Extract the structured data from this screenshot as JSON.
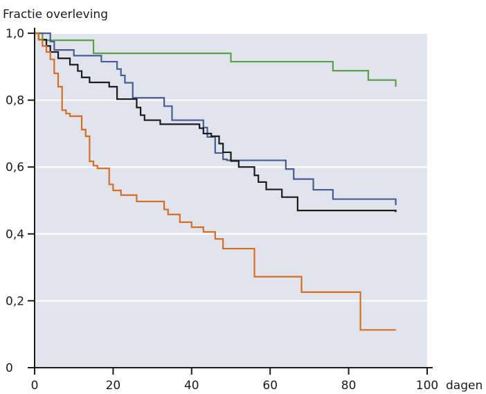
{
  "chart_data": {
    "type": "line",
    "title": "",
    "ylabel": "Fractie overleving",
    "xlabel": "",
    "x_unit_label": "dagen",
    "xlim": [
      0,
      100
    ],
    "ylim": [
      0,
      1.0
    ],
    "x_ticks": [
      {
        "value": 0,
        "label": "0"
      },
      {
        "value": 20,
        "label": "20"
      },
      {
        "value": 40,
        "label": "40"
      },
      {
        "value": 60,
        "label": "60"
      },
      {
        "value": 80,
        "label": "80"
      },
      {
        "value": 100,
        "label": "100"
      }
    ],
    "y_ticks": [
      {
        "value": 0,
        "label": "0"
      },
      {
        "value": 0.2,
        "label": "0,2"
      },
      {
        "value": 0.4,
        "label": "0,4"
      },
      {
        "value": 0.6,
        "label": "0,6"
      },
      {
        "value": 0.8,
        "label": "0,8"
      },
      {
        "value": 1.0,
        "label": "1,0"
      }
    ],
    "grid": true,
    "step": true,
    "colors": {
      "plot_background": "#e1e4ec",
      "gridline": "#ffffff",
      "axis": "#1a1a1a"
    },
    "series": [
      {
        "color": "#5aa04a",
        "x": [
          0,
          2,
          15,
          50,
          76,
          85,
          92
        ],
        "y": [
          1.0,
          0.979,
          0.94,
          0.915,
          0.888,
          0.86,
          0.84
        ]
      },
      {
        "color": "#475c92",
        "x": [
          0,
          4,
          5,
          10,
          17,
          21,
          22,
          23,
          25,
          33,
          35,
          43,
          44,
          46,
          48,
          49,
          64,
          66,
          71,
          76,
          92
        ],
        "y": [
          1.0,
          0.975,
          0.95,
          0.933,
          0.915,
          0.893,
          0.874,
          0.852,
          0.807,
          0.782,
          0.74,
          0.718,
          0.69,
          0.642,
          0.623,
          0.62,
          0.594,
          0.564,
          0.532,
          0.504,
          0.486
        ]
      },
      {
        "color": "#1a1a1a",
        "x": [
          0,
          1,
          3,
          4,
          6,
          9,
          11,
          12,
          14,
          19,
          21,
          26,
          27,
          28,
          32,
          42,
          43,
          45,
          47,
          48,
          50,
          52,
          56,
          57,
          59,
          63,
          67,
          92
        ],
        "y": [
          1.0,
          0.981,
          0.962,
          0.944,
          0.925,
          0.906,
          0.887,
          0.868,
          0.853,
          0.84,
          0.803,
          0.778,
          0.755,
          0.74,
          0.728,
          0.716,
          0.7,
          0.692,
          0.67,
          0.644,
          0.618,
          0.6,
          0.575,
          0.555,
          0.533,
          0.51,
          0.47,
          0.465
        ]
      },
      {
        "color": "#d66e22",
        "x": [
          0,
          1,
          2,
          3,
          4,
          5,
          6,
          7,
          8,
          9,
          12,
          13,
          14,
          15,
          16,
          19,
          20,
          22,
          26,
          33,
          34,
          37,
          40,
          43,
          46,
          48,
          56,
          68,
          83,
          92
        ],
        "y": [
          1.0,
          0.981,
          0.962,
          0.944,
          0.922,
          0.88,
          0.84,
          0.77,
          0.76,
          0.752,
          0.712,
          0.692,
          0.617,
          0.604,
          0.596,
          0.548,
          0.53,
          0.516,
          0.497,
          0.473,
          0.458,
          0.435,
          0.42,
          0.406,
          0.385,
          0.356,
          0.272,
          0.226,
          0.113,
          0.113
        ]
      }
    ]
  }
}
